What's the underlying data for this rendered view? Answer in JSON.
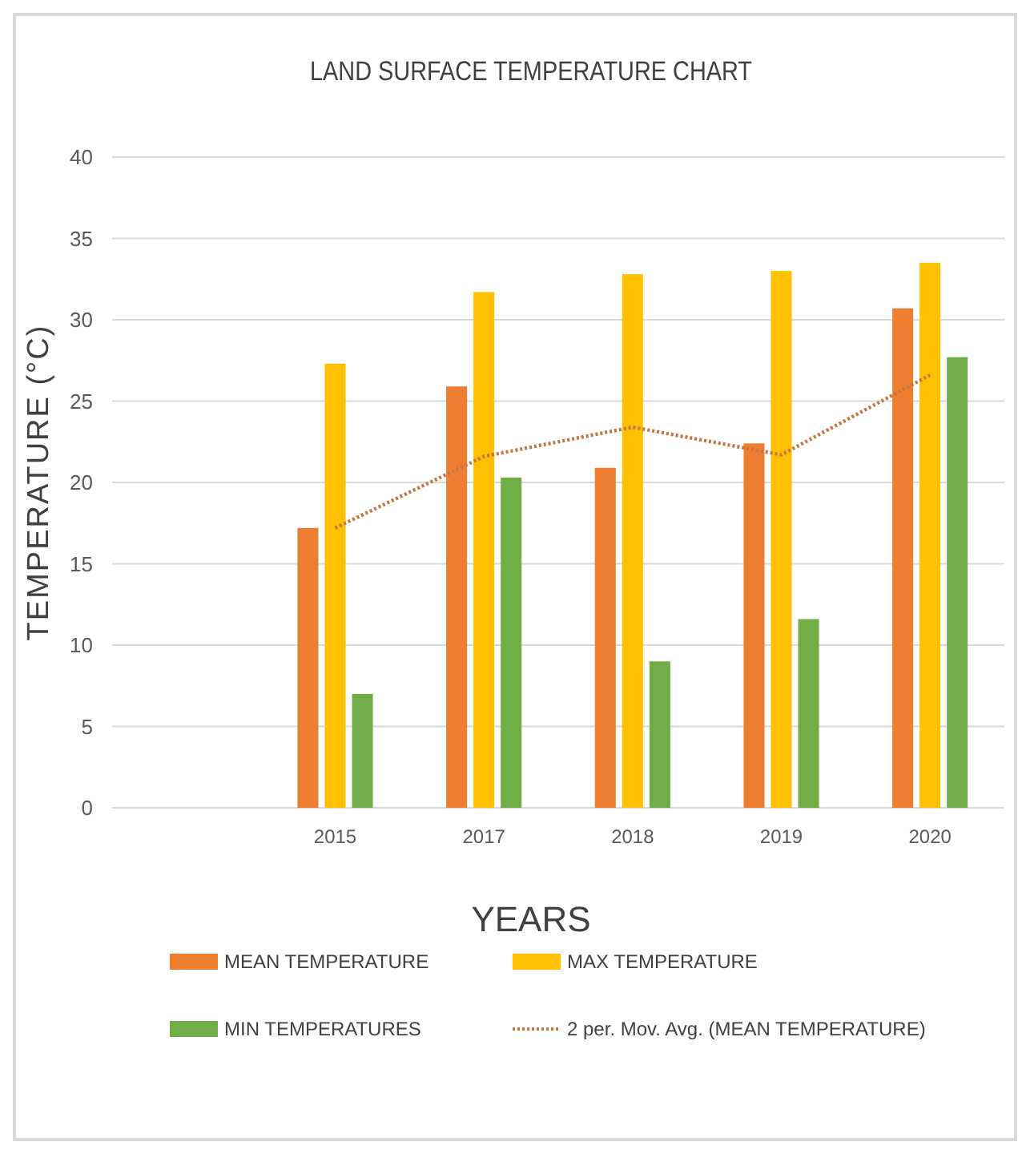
{
  "chart_data": {
    "type": "bar",
    "title": "LAND SURFACE TEMPERATURE CHART",
    "xlabel": "YEARS",
    "ylabel": "TEMPERATURE (°C)",
    "categories": [
      null,
      "2015",
      "2017",
      "2018",
      "2019",
      "2020"
    ],
    "series": [
      {
        "name": "MEAN TEMPERATURE",
        "color": "#ed7d31",
        "values": [
          null,
          17.2,
          25.9,
          20.9,
          22.4,
          30.7
        ]
      },
      {
        "name": "MAX TEMPERATURE",
        "color": "#ffc000",
        "values": [
          null,
          27.3,
          31.7,
          32.8,
          33.0,
          33.5
        ]
      },
      {
        "name": "MIN TEMPERATURES",
        "color": "#70ad47",
        "values": [
          null,
          7.0,
          20.3,
          9.0,
          11.6,
          27.7
        ]
      },
      {
        "name": "2 per. Mov. Avg. (MEAN TEMPERATURE)",
        "color": "#c5753f",
        "type": "line",
        "line_style": "dotted",
        "values": [
          null,
          17.2,
          21.6,
          23.4,
          21.7,
          26.6
        ]
      }
    ],
    "ylim": [
      0,
      40
    ],
    "yticks": [
      0,
      5,
      10,
      15,
      20,
      25,
      30,
      35,
      40
    ],
    "grid": "y",
    "legend": "bottom"
  }
}
